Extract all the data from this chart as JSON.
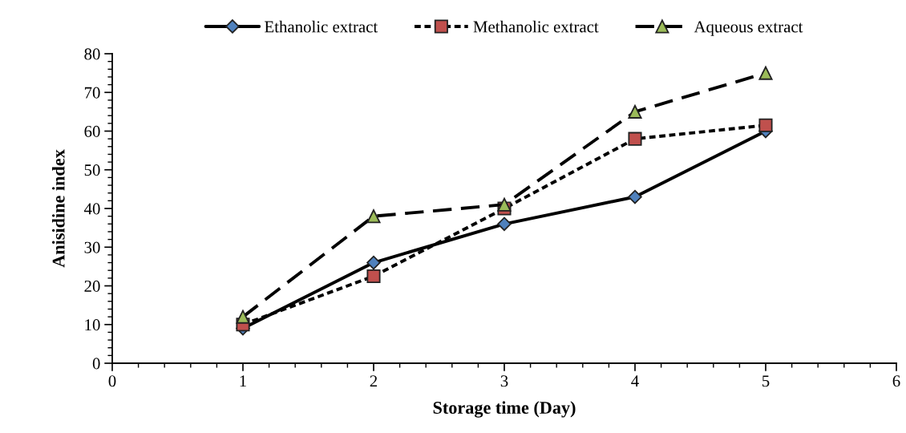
{
  "chart_data": {
    "type": "line",
    "xlabel": "Storage time (Day)",
    "ylabel": "Anisidine index",
    "x": [
      1,
      2,
      3,
      4,
      5
    ],
    "series": [
      {
        "name": "Ethanolic extract",
        "color": "#4f81bd",
        "values": [
          9,
          26,
          36,
          43,
          60
        ],
        "marker": "diamond",
        "line_style": "solid"
      },
      {
        "name": "Methanolic extract",
        "color": "#c0504d",
        "values": [
          10,
          22.5,
          40,
          58,
          61.5
        ],
        "marker": "square",
        "line_style": "dotted"
      },
      {
        "name": "Aqueous extract",
        "color": "#9bbb59",
        "values": [
          12,
          38,
          41,
          65,
          75
        ],
        "marker": "triangle",
        "line_style": "dashed"
      }
    ],
    "xlim": [
      0,
      6
    ],
    "xticks": [
      0,
      1,
      2,
      3,
      4,
      5,
      6
    ],
    "ylim": [
      0,
      80
    ],
    "yticks": [
      0,
      10,
      20,
      30,
      40,
      50,
      60,
      70,
      80
    ],
    "grid": false,
    "legend": "top"
  }
}
